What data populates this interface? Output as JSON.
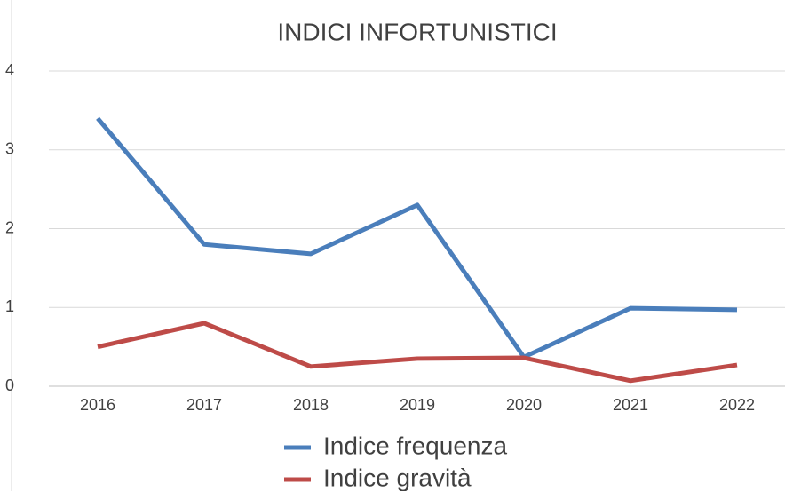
{
  "chart_data": {
    "type": "line",
    "title": "INDICI INFORTUNISTICI",
    "categories": [
      "2016",
      "2017",
      "2018",
      "2019",
      "2020",
      "2021",
      "2022"
    ],
    "series": [
      {
        "name": "Indice frequenza",
        "color": "#4a7ebb",
        "values": [
          3.4,
          1.8,
          1.68,
          2.3,
          0.37,
          0.99,
          0.97
        ]
      },
      {
        "name": "Indice gravità",
        "color": "#be4b48",
        "values": [
          0.5,
          0.8,
          0.25,
          0.35,
          0.36,
          0.07,
          0.27
        ]
      }
    ],
    "ylim": [
      0,
      4
    ],
    "yticks": [
      0,
      1,
      2,
      3,
      4
    ],
    "grid": true,
    "legend": "bottom"
  }
}
